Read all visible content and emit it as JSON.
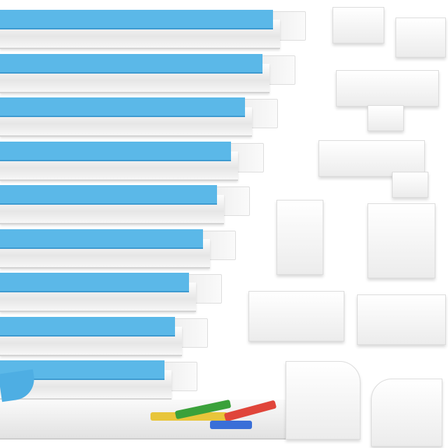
{
  "colors": {
    "adhesive_tape": "#5bb8e8",
    "channel": "#f4f4f4",
    "connector_green": "#3aa13a",
    "connector_red": "#e0453a",
    "connector_blue": "#3a6fd8",
    "connector_yellow": "#e8c53a"
  }
}
